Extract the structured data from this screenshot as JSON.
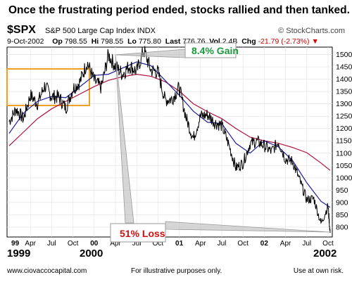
{
  "headline": "Once the frustrating period ended, stocks rallied and then tanked.",
  "header": {
    "symbol": "$SPX",
    "name": "S&P 500 Large Cap Index",
    "exchange": "INDX",
    "brand": "© StockCharts.com",
    "date": "9-Oct-2002",
    "open_label": "Op",
    "open": "798.55",
    "high_label": "Hi",
    "high": "798.55",
    "low_label": "Lo",
    "low": "775.80",
    "last_label": "Last",
    "last": "776.76",
    "vol_label": "Vol",
    "vol": "2.4B",
    "chg_label": "Chg",
    "chg": "-21.79 (-2.73%)",
    "chg_arrow": "▼"
  },
  "bottom": {
    "year_left": "1999",
    "year_mid": "2000",
    "year_right": "2002",
    "website": "www.ciovaccocapital.com",
    "disclaimer": "For illustrative purposes only.",
    "risk": "Use at own risk."
  },
  "colors": {
    "price": "#000000",
    "ma_short": "#1c1c9c",
    "ma_long": "#b0103c",
    "box": "#f0a020",
    "gain": "#1a9a3a",
    "loss": "#d01010",
    "arrow": "#999999"
  },
  "chart_data": {
    "type": "line",
    "ylim": [
      760,
      1530
    ],
    "y_ticks": [
      800,
      850,
      900,
      950,
      1000,
      1050,
      1100,
      1150,
      1200,
      1250,
      1300,
      1350,
      1400,
      1450,
      1500
    ],
    "y_tick_labels": [
      "800",
      "850",
      "900",
      "950",
      "1000",
      "1050",
      "1100",
      "1150",
      "1200",
      "1250",
      "1300",
      "1350",
      "1400",
      "1450",
      "1500"
    ],
    "x_ticks": [
      {
        "label": "99",
        "t": 0,
        "bold": true
      },
      {
        "label": "Apr",
        "t": 3,
        "bold": false
      },
      {
        "label": "Jul",
        "t": 6,
        "bold": false
      },
      {
        "label": "Oct",
        "t": 9,
        "bold": false
      },
      {
        "label": "00",
        "t": 12,
        "bold": true
      },
      {
        "label": "Apr",
        "t": 15,
        "bold": false
      },
      {
        "label": "Jul",
        "t": 18,
        "bold": false
      },
      {
        "label": "Oct",
        "t": 21,
        "bold": false
      },
      {
        "label": "01",
        "t": 24,
        "bold": true
      },
      {
        "label": "Apr",
        "t": 27,
        "bold": false
      },
      {
        "label": "Jul",
        "t": 30,
        "bold": false
      },
      {
        "label": "Oct",
        "t": 33,
        "bold": false
      },
      {
        "label": "02",
        "t": 36,
        "bold": true
      },
      {
        "label": "Apr",
        "t": 39,
        "bold": false
      },
      {
        "label": "Jul",
        "t": 42,
        "bold": false
      },
      {
        "label": "Oct",
        "t": 45,
        "bold": false
      }
    ],
    "x_range": [
      -0.3,
      45.6
    ],
    "price": {
      "t": [
        0,
        1,
        2,
        3,
        4,
        5,
        6,
        7,
        8,
        9,
        10,
        11,
        12,
        13,
        14,
        15,
        16,
        17,
        18,
        19,
        20,
        21,
        22,
        23,
        24,
        25,
        26,
        27,
        28,
        29,
        30,
        31,
        32,
        33,
        34,
        35,
        36,
        37,
        38,
        39,
        40,
        41,
        42,
        43,
        44,
        45,
        45.3
      ],
      "values": [
        1229,
        1279,
        1238,
        1335,
        1301,
        1373,
        1329,
        1328,
        1282,
        1362,
        1389,
        1469,
        1394,
        1366,
        1499,
        1452,
        1421,
        1455,
        1431,
        1518,
        1437,
        1429,
        1315,
        1320,
        1366,
        1240,
        1160,
        1250,
        1256,
        1224,
        1212,
        1134,
        1040,
        1060,
        1139,
        1148,
        1130,
        1106,
        1147,
        1076,
        1067,
        990,
        911,
        916,
        815,
        885,
        777
      ]
    },
    "ma_short": {
      "t": [
        0,
        2,
        4,
        6,
        8,
        10,
        12,
        14,
        16,
        18,
        20,
        22,
        24,
        26,
        28,
        30,
        32,
        34,
        36,
        38,
        40,
        42,
        44,
        45.3
      ],
      "values": [
        1180,
        1262,
        1310,
        1330,
        1325,
        1370,
        1415,
        1420,
        1445,
        1470,
        1455,
        1395,
        1335,
        1270,
        1225,
        1220,
        1140,
        1100,
        1150,
        1125,
        1070,
        980,
        905,
        880
      ]
    },
    "ma_long": {
      "t": [
        0,
        2,
        4,
        6,
        8,
        10,
        12,
        14,
        16,
        18,
        20,
        22,
        24,
        26,
        28,
        30,
        32,
        34,
        36,
        38,
        40,
        42,
        44,
        45.3
      ],
      "values": [
        1130,
        1185,
        1240,
        1280,
        1310,
        1340,
        1370,
        1395,
        1410,
        1420,
        1412,
        1390,
        1352,
        1300,
        1268,
        1240,
        1200,
        1165,
        1150,
        1140,
        1123,
        1102,
        1060,
        1030
      ]
    },
    "annotations": [
      {
        "text": "8.4% Gain",
        "color": "#1a9a3a"
      },
      {
        "text": "51% Loss",
        "color": "#d01010"
      }
    ]
  }
}
